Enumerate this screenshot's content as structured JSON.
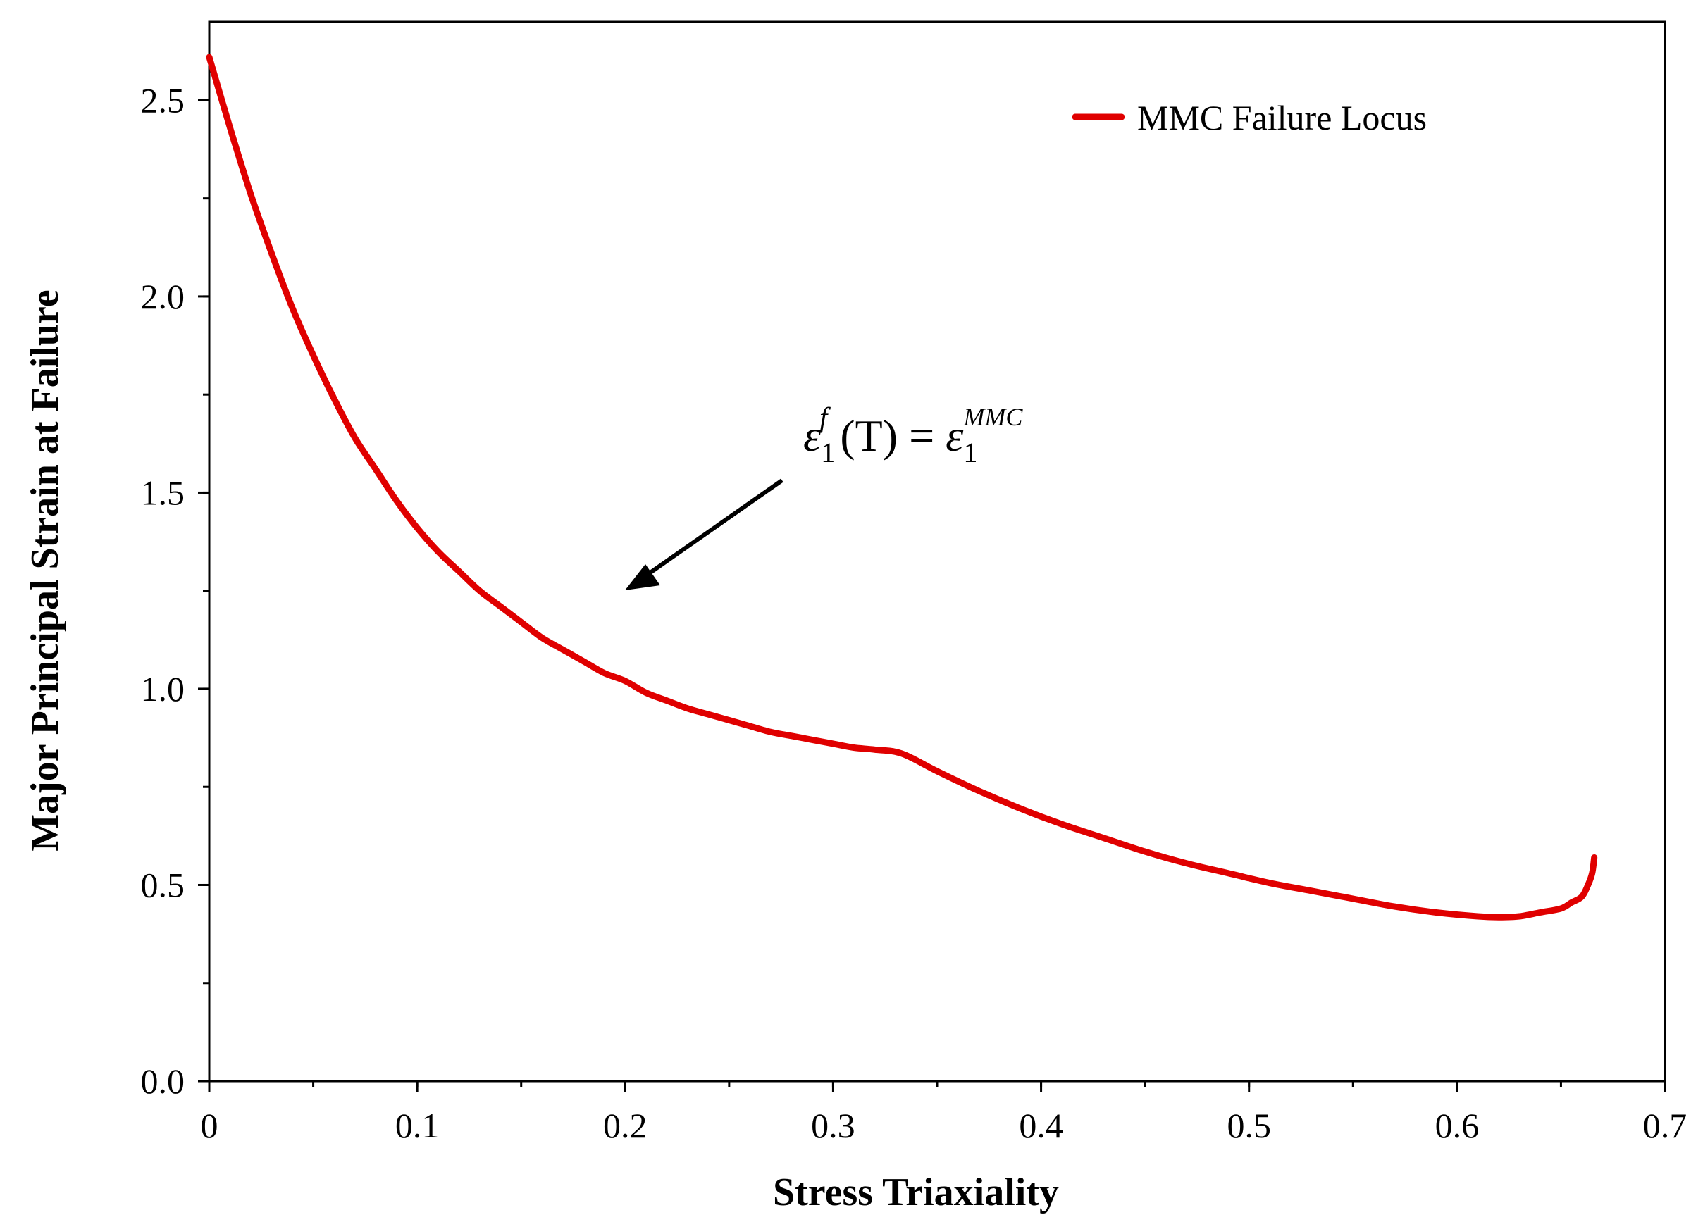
{
  "chart_data": {
    "type": "line",
    "title": "",
    "xlabel": "Stress Triaxiality",
    "ylabel": "Major Principal Strain at Failure",
    "xlim": [
      0,
      0.7
    ],
    "ylim": [
      0,
      2.7
    ],
    "xticks": [
      0,
      0.1,
      0.2,
      0.3,
      0.4,
      0.5,
      0.6,
      0.7
    ],
    "xtick_labels": [
      "0",
      "0.1",
      "0.2",
      "0.3",
      "0.4",
      "0.5",
      "0.6",
      "0.7"
    ],
    "yticks": [
      0,
      0.5,
      1.0,
      1.5,
      2.0,
      2.5
    ],
    "ytick_labels": [
      "0.0",
      "0.5",
      "1.0",
      "1.5",
      "2.0",
      "2.5"
    ],
    "x_minor_step": 0.05,
    "y_minor_step": 0.25,
    "grid": false,
    "legend_position": "top-right",
    "series": [
      {
        "name": "MMC Failure Locus",
        "color": "#e00000",
        "x": [
          0.0,
          0.01,
          0.02,
          0.03,
          0.04,
          0.05,
          0.06,
          0.07,
          0.08,
          0.09,
          0.1,
          0.11,
          0.12,
          0.13,
          0.14,
          0.15,
          0.16,
          0.17,
          0.18,
          0.19,
          0.2,
          0.21,
          0.22,
          0.23,
          0.24,
          0.25,
          0.26,
          0.27,
          0.28,
          0.29,
          0.3,
          0.31,
          0.32,
          0.333,
          0.35,
          0.37,
          0.39,
          0.41,
          0.43,
          0.45,
          0.47,
          0.49,
          0.51,
          0.53,
          0.55,
          0.57,
          0.59,
          0.61,
          0.62,
          0.63,
          0.64,
          0.65,
          0.655,
          0.66,
          0.663,
          0.665,
          0.666
        ],
        "y": [
          2.61,
          2.43,
          2.26,
          2.11,
          1.97,
          1.85,
          1.74,
          1.64,
          1.56,
          1.48,
          1.41,
          1.35,
          1.3,
          1.25,
          1.21,
          1.17,
          1.13,
          1.1,
          1.07,
          1.04,
          1.02,
          0.99,
          0.97,
          0.95,
          0.935,
          0.92,
          0.905,
          0.89,
          0.88,
          0.87,
          0.86,
          0.85,
          0.845,
          0.835,
          0.79,
          0.74,
          0.695,
          0.655,
          0.62,
          0.585,
          0.555,
          0.53,
          0.505,
          0.485,
          0.465,
          0.445,
          0.43,
          0.42,
          0.418,
          0.42,
          0.43,
          0.44,
          0.455,
          0.47,
          0.5,
          0.53,
          0.57
        ]
      }
    ],
    "annotations": [
      {
        "formula_tokens": [
          "ε",
          "1",
          "f",
          "(T) = ",
          "ε",
          "1",
          "MMC"
        ],
        "points_to": {
          "x": 0.2,
          "y": 1.2
        }
      }
    ]
  }
}
